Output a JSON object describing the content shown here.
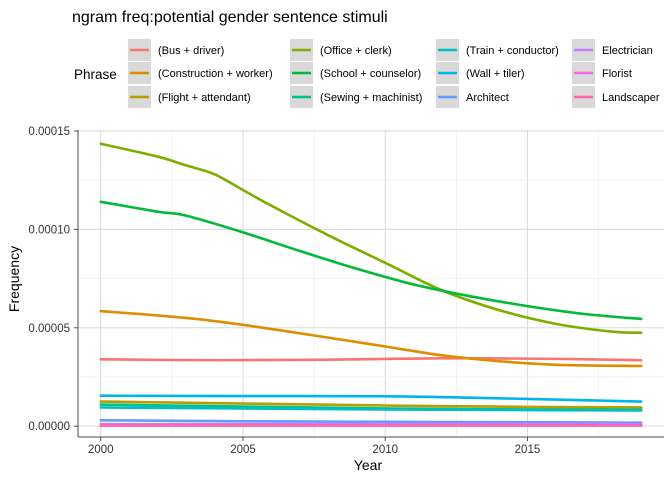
{
  "chart_data": {
    "type": "line",
    "title": "ngram freq:potential gender sentence stimuli",
    "xlabel": "Year",
    "ylabel": "Frequency",
    "xlim": [
      1999.2,
      2019.8
    ],
    "ylim": [
      -5.5e-06,
      0.0001505
    ],
    "x_ticks": [
      2000,
      2005,
      2010,
      2015
    ],
    "x_tick_labels": [
      "2000",
      "2005",
      "2010",
      "2015"
    ],
    "y_ticks": [
      0,
      5e-05,
      0.0001,
      0.00015
    ],
    "y_tick_labels": [
      "0.00000",
      "0.00005",
      "0.00010",
      "0.00015"
    ],
    "grid": true,
    "legend_title": "Phrase",
    "legend_position": "top",
    "series": [
      {
        "name": "(Bus + driver)",
        "color": "#F8766D",
        "points": [
          [
            2000,
            3.4e-05
          ],
          [
            2004,
            3.35e-05
          ],
          [
            2008,
            3.38e-05
          ],
          [
            2012,
            3.45e-05
          ],
          [
            2016,
            3.42e-05
          ],
          [
            2019,
            3.35e-05
          ]
        ]
      },
      {
        "name": "(Construction + worker)",
        "color": "#DE8C00",
        "points": [
          [
            2000,
            5.85e-05
          ],
          [
            2003,
            5.5e-05
          ],
          [
            2005,
            5.15e-05
          ],
          [
            2008,
            4.5e-05
          ],
          [
            2010,
            4.05e-05
          ],
          [
            2012,
            3.6e-05
          ],
          [
            2014,
            3.3e-05
          ],
          [
            2016,
            3.12e-05
          ],
          [
            2019,
            3.06e-05
          ]
        ]
      },
      {
        "name": "(Flight + attendant)",
        "color": "#B79F00",
        "points": [
          [
            2000,
            1.25e-05
          ],
          [
            2005,
            1.15e-05
          ],
          [
            2010,
            1.05e-05
          ],
          [
            2015,
            9.8e-06
          ],
          [
            2019,
            9.5e-06
          ]
        ]
      },
      {
        "name": "(Office + clerk)",
        "color": "#7CAE00",
        "points": [
          [
            2000,
            0.0001435
          ],
          [
            2002,
            0.000137
          ],
          [
            2003,
            0.0001325
          ],
          [
            2004,
            0.000128
          ],
          [
            2005,
            0.00012
          ],
          [
            2006,
            0.000112
          ],
          [
            2008,
            9.7e-05
          ],
          [
            2010,
            8.3e-05
          ],
          [
            2012,
            6.9e-05
          ],
          [
            2014,
            5.9e-05
          ],
          [
            2016,
            5.2e-05
          ],
          [
            2018,
            4.8e-05
          ],
          [
            2019,
            4.75e-05
          ]
        ]
      },
      {
        "name": "(School + counselor)",
        "color": "#00BA38",
        "points": [
          [
            2000,
            0.000114
          ],
          [
            2002,
            0.000109
          ],
          [
            2003,
            0.000107
          ],
          [
            2005,
            9.85e-05
          ],
          [
            2007,
            8.9e-05
          ],
          [
            2009,
            8e-05
          ],
          [
            2011,
            7.2e-05
          ],
          [
            2013,
            6.6e-05
          ],
          [
            2015,
            6.1e-05
          ],
          [
            2017,
            5.7e-05
          ],
          [
            2019,
            5.45e-05
          ]
        ]
      },
      {
        "name": "(Sewing + machinist)",
        "color": "#00C08B",
        "points": [
          [
            2000,
            1.1e-05
          ],
          [
            2005,
            1e-05
          ],
          [
            2010,
            9e-06
          ],
          [
            2015,
            8.5e-06
          ],
          [
            2019,
            8.3e-06
          ]
        ]
      },
      {
        "name": "(Train + conductor)",
        "color": "#00BFC4",
        "points": [
          [
            2000,
            9.5e-06
          ],
          [
            2005,
            9e-06
          ],
          [
            2010,
            8.5e-06
          ],
          [
            2015,
            8.2e-06
          ],
          [
            2019,
            8e-06
          ]
        ]
      },
      {
        "name": "(Wall + tiler)",
        "color": "#00B4F0",
        "points": [
          [
            2000,
            1.55e-05
          ],
          [
            2005,
            1.53e-05
          ],
          [
            2010,
            1.52e-05
          ],
          [
            2013,
            1.45e-05
          ],
          [
            2016,
            1.35e-05
          ],
          [
            2019,
            1.25e-05
          ]
        ]
      },
      {
        "name": "Architect",
        "color": "#619CFF",
        "points": [
          [
            2000,
            3e-06
          ],
          [
            2005,
            2.5e-06
          ],
          [
            2010,
            2.2e-06
          ],
          [
            2015,
            2e-06
          ],
          [
            2019,
            1.8e-06
          ]
        ]
      },
      {
        "name": "Electrician",
        "color": "#C77CFF",
        "points": [
          [
            2000,
            1e-06
          ],
          [
            2010,
            1e-06
          ],
          [
            2019,
            1e-06
          ]
        ]
      },
      {
        "name": "Florist",
        "color": "#F564E3",
        "points": [
          [
            2000,
            5e-07
          ],
          [
            2010,
            5e-07
          ],
          [
            2019,
            5e-07
          ]
        ]
      },
      {
        "name": "Landscaper",
        "color": "#FF64B0",
        "points": [
          [
            2000,
            3e-07
          ],
          [
            2010,
            3e-07
          ],
          [
            2019,
            3e-07
          ]
        ]
      }
    ]
  }
}
